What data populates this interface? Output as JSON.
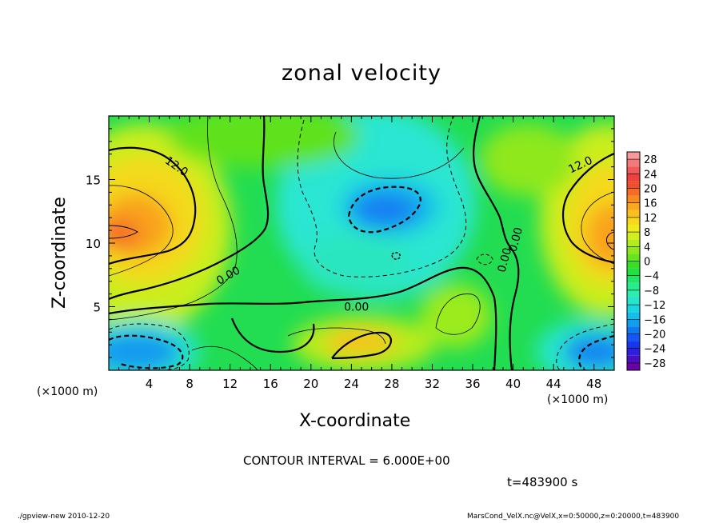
{
  "chart_data": {
    "type": "heatmap",
    "title": "zonal velocity",
    "xlabel": "X-coordinate",
    "ylabel": "Z-coordinate",
    "x_unit_label": "(×1000 m)",
    "xlim": [
      0,
      50
    ],
    "ylim": [
      0,
      20
    ],
    "x_ticks": [
      "4",
      "8",
      "12",
      "16",
      "20",
      "24",
      "28",
      "32",
      "36",
      "40",
      "44",
      "48"
    ],
    "x_tick_values": [
      4,
      8,
      12,
      16,
      20,
      24,
      28,
      32,
      36,
      40,
      44,
      48
    ],
    "y_ticks": [
      "5",
      "10",
      "15"
    ],
    "y_tick_values": [
      5,
      10,
      15
    ],
    "colorbar": {
      "labels": [
        "28",
        "24",
        "20",
        "16",
        "12",
        "8",
        "4",
        "0",
        "−4",
        "−8",
        "−12",
        "−16",
        "−20",
        "−24",
        "−28"
      ],
      "levels": [
        -30,
        -28,
        -26,
        -24,
        -22,
        -20,
        -18,
        -16,
        -14,
        -12,
        -10,
        -8,
        -6,
        -4,
        -2,
        0,
        2,
        4,
        6,
        8,
        10,
        12,
        14,
        16,
        18,
        20,
        22,
        24,
        26,
        28,
        30
      ],
      "colors": [
        "#6a00a8",
        "#4d0fc2",
        "#2f1fdb",
        "#1a35ee",
        "#1256f5",
        "#0f79f2",
        "#129ded",
        "#14bdea",
        "#1ad6e2",
        "#27e5cd",
        "#2deeb0",
        "#26ec8c",
        "#1fe665",
        "#22e040",
        "#3ade27",
        "#66e41e",
        "#8fe81a",
        "#b2ec1b",
        "#d4ee1c",
        "#eeea1c",
        "#f8d71d",
        "#fbbf1d",
        "#fba61e",
        "#f98a22",
        "#f56b27",
        "#f1502e",
        "#ee403c",
        "#f0595a",
        "#f3797a",
        "#f79a9a"
      ]
    },
    "contour_labels": [
      {
        "text": "12.0",
        "x": 6.5,
        "y": 15.8,
        "angle": 35
      },
      {
        "text": "12.0",
        "x": 46.8,
        "y": 15.9,
        "angle": -25
      },
      {
        "text": "0.00",
        "x": 12,
        "y": 7.2,
        "angle": -30
      },
      {
        "text": "0.00",
        "x": 24.5,
        "y": 4.7,
        "angle": 0
      },
      {
        "text": "0.00",
        "x": 39.5,
        "y": 8.6,
        "angle": -75
      },
      {
        "text": "0.00",
        "x": 40.6,
        "y": 10.2,
        "angle": -75
      }
    ],
    "contour_interval": "CONTOUR INTERVAL = 6.000E+00"
  },
  "annotations": {
    "time": "t=483900 s",
    "footer_left": "./gpview-new  2010-12-20",
    "footer_right": "MarsCond_VelX.nc@VelX,x=0:50000,z=0:20000,t=483900"
  }
}
